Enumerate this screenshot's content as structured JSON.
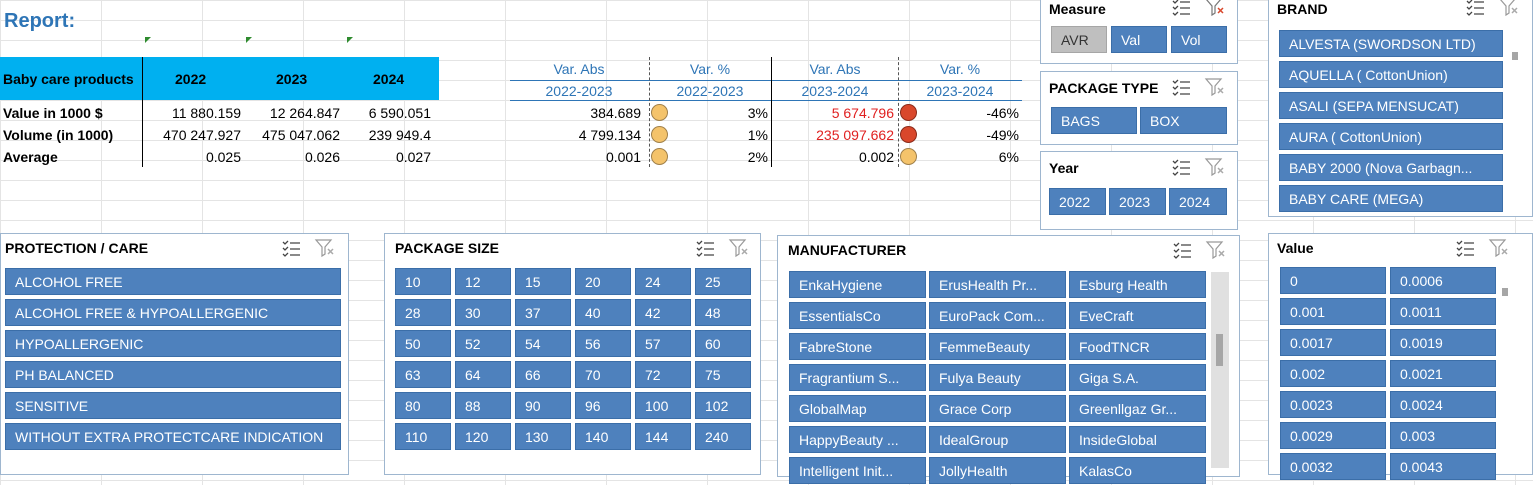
{
  "report_title": "Report:",
  "table": {
    "header": [
      "Baby care products",
      "2022",
      "2023",
      "2024"
    ],
    "rows": [
      {
        "label": "Value in 1000 $",
        "v": [
          "11 880.159",
          "12 264.847",
          "6 590.051"
        ]
      },
      {
        "label": "Volume (in 1000)",
        "v": [
          "470 247.927",
          "475 047.062",
          "239 949.4"
        ]
      },
      {
        "label": "Average",
        "v": [
          "0.025",
          "0.026",
          "0.027"
        ]
      }
    ]
  },
  "variance": {
    "headers": [
      {
        "top": "Var. Abs",
        "bottom": "2022-2023"
      },
      {
        "top": "Var. %",
        "bottom": "2022-2023"
      },
      {
        "top": "Var. Abs",
        "bottom": "2023-2024"
      },
      {
        "top": "Var. %",
        "bottom": "2023-2024"
      }
    ],
    "rows": [
      {
        "abs1": "384.689",
        "pct1": "3%",
        "abs2": "5 674.796",
        "pct2": "-46%"
      },
      {
        "abs1": "4 799.134",
        "pct1": "1%",
        "abs2": "235 097.662",
        "pct2": "-49%"
      },
      {
        "abs1": "0.001",
        "pct1": "2%",
        "abs2": "0.002",
        "pct2": "6%"
      }
    ],
    "colors": {
      "amber": "#f4c36b",
      "red": "#d9472b",
      "negative_text": "#e02020"
    }
  },
  "slicers": {
    "measure": {
      "title": "Measure",
      "items": [
        "AVR",
        "Val",
        "Vol"
      ]
    },
    "package_type": {
      "title": "PACKAGE TYPE",
      "items": [
        "BAGS",
        "BOX"
      ]
    },
    "year": {
      "title": "Year",
      "items": [
        "2022",
        "2023",
        "2024"
      ]
    },
    "brand": {
      "title": "BRAND",
      "items": [
        "ALVESTA (SWORDSON LTD)",
        "AQUELLA ( CottonUnion)",
        "ASALI (SEPA MENSUCAT)",
        "AURA ( CottonUnion)",
        "BABY 2000 (Nova Garbagn...",
        "BABY CARE (MEGA)"
      ]
    },
    "protection": {
      "title": "PROTECTION / CARE",
      "items": [
        "ALCOHOL FREE",
        "ALCOHOL FREE & HYPOALLERGENIC",
        "HYPOALLERGENIC",
        "PH BALANCED",
        "SENSITIVE",
        "WITHOUT EXTRA PROTECTCARE INDICATION"
      ]
    },
    "package_size": {
      "title": "PACKAGE SIZE",
      "items": [
        "10",
        "12",
        "15",
        "20",
        "24",
        "25",
        "28",
        "30",
        "37",
        "40",
        "42",
        "48",
        "50",
        "52",
        "54",
        "56",
        "57",
        "60",
        "63",
        "64",
        "66",
        "70",
        "72",
        "75",
        "80",
        "88",
        "90",
        "96",
        "100",
        "102",
        "110",
        "120",
        "130",
        "140",
        "144",
        "240"
      ]
    },
    "manufacturer": {
      "title": "MANUFACTURER",
      "items": [
        "EnkaHygiene",
        "ErusHealth Pr...",
        "Esburg Health",
        "EssentialsCo",
        "EuroPack Com...",
        "EveCraft",
        "FabreStone",
        "FemmeBeauty",
        "FoodTNCR",
        "Fragrantium S...",
        "Fulya Beauty",
        "Giga S.A.",
        "GlobalMap",
        "Grace Corp",
        "Greenllgaz Gr...",
        "HappyBeauty ...",
        "IdealGroup",
        "InsideGlobal",
        "Intelligent Init...",
        "JollyHealth",
        "KalasCo"
      ]
    },
    "value": {
      "title": "Value",
      "items": [
        "0",
        "0.0006",
        "0.001",
        "0.0011",
        "0.0017",
        "0.0019",
        "0.002",
        "0.0021",
        "0.0023",
        "0.0024",
        "0.0029",
        "0.003",
        "0.0032",
        "0.0043"
      ]
    }
  },
  "icons": {
    "multi_select": "multi-select-icon",
    "clear_filter": "clear-filter-icon"
  },
  "accent_colors": {
    "header_blue": "#00b0f0",
    "button_blue": "#4e81bd",
    "title_blue": "#2e75b6"
  }
}
